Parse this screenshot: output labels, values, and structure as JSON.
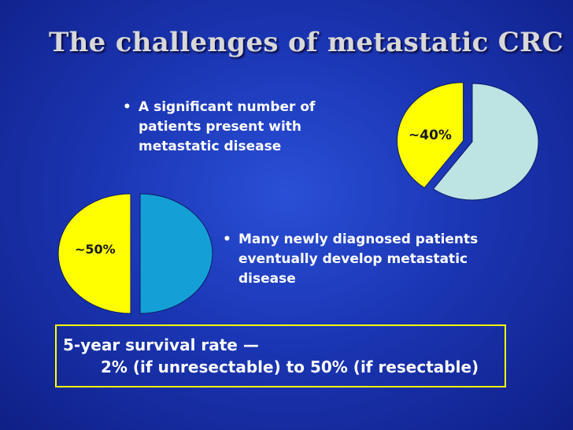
{
  "title": "The challenges of metastatic CRC",
  "bullets": [
    {
      "text": "A significant number of patients present with metastatic disease"
    },
    {
      "text": "Many newly diagnosed patients eventually develop metastatic disease"
    }
  ],
  "survival_box": {
    "line1": "5-year survival rate —",
    "line2": "2% (if unresectable) to 50% (if resectable)"
  },
  "colors": {
    "background": "#1b36b4",
    "highlight_yellow": "#ffff00",
    "pie1_rest": "#bde3e3",
    "pie2_rest": "#14a0d6",
    "title_text": "#d8d8d8"
  },
  "chart_data": [
    {
      "type": "pie",
      "label": "~40%",
      "slices": [
        {
          "value": 40,
          "color": "#ffff00",
          "exploded": true
        },
        {
          "value": 60,
          "color": "#bde3e3"
        }
      ]
    },
    {
      "type": "pie",
      "label": "~50%",
      "slices": [
        {
          "value": 50,
          "color": "#ffff00",
          "exploded": true
        },
        {
          "value": 50,
          "color": "#14a0d6"
        }
      ]
    }
  ]
}
